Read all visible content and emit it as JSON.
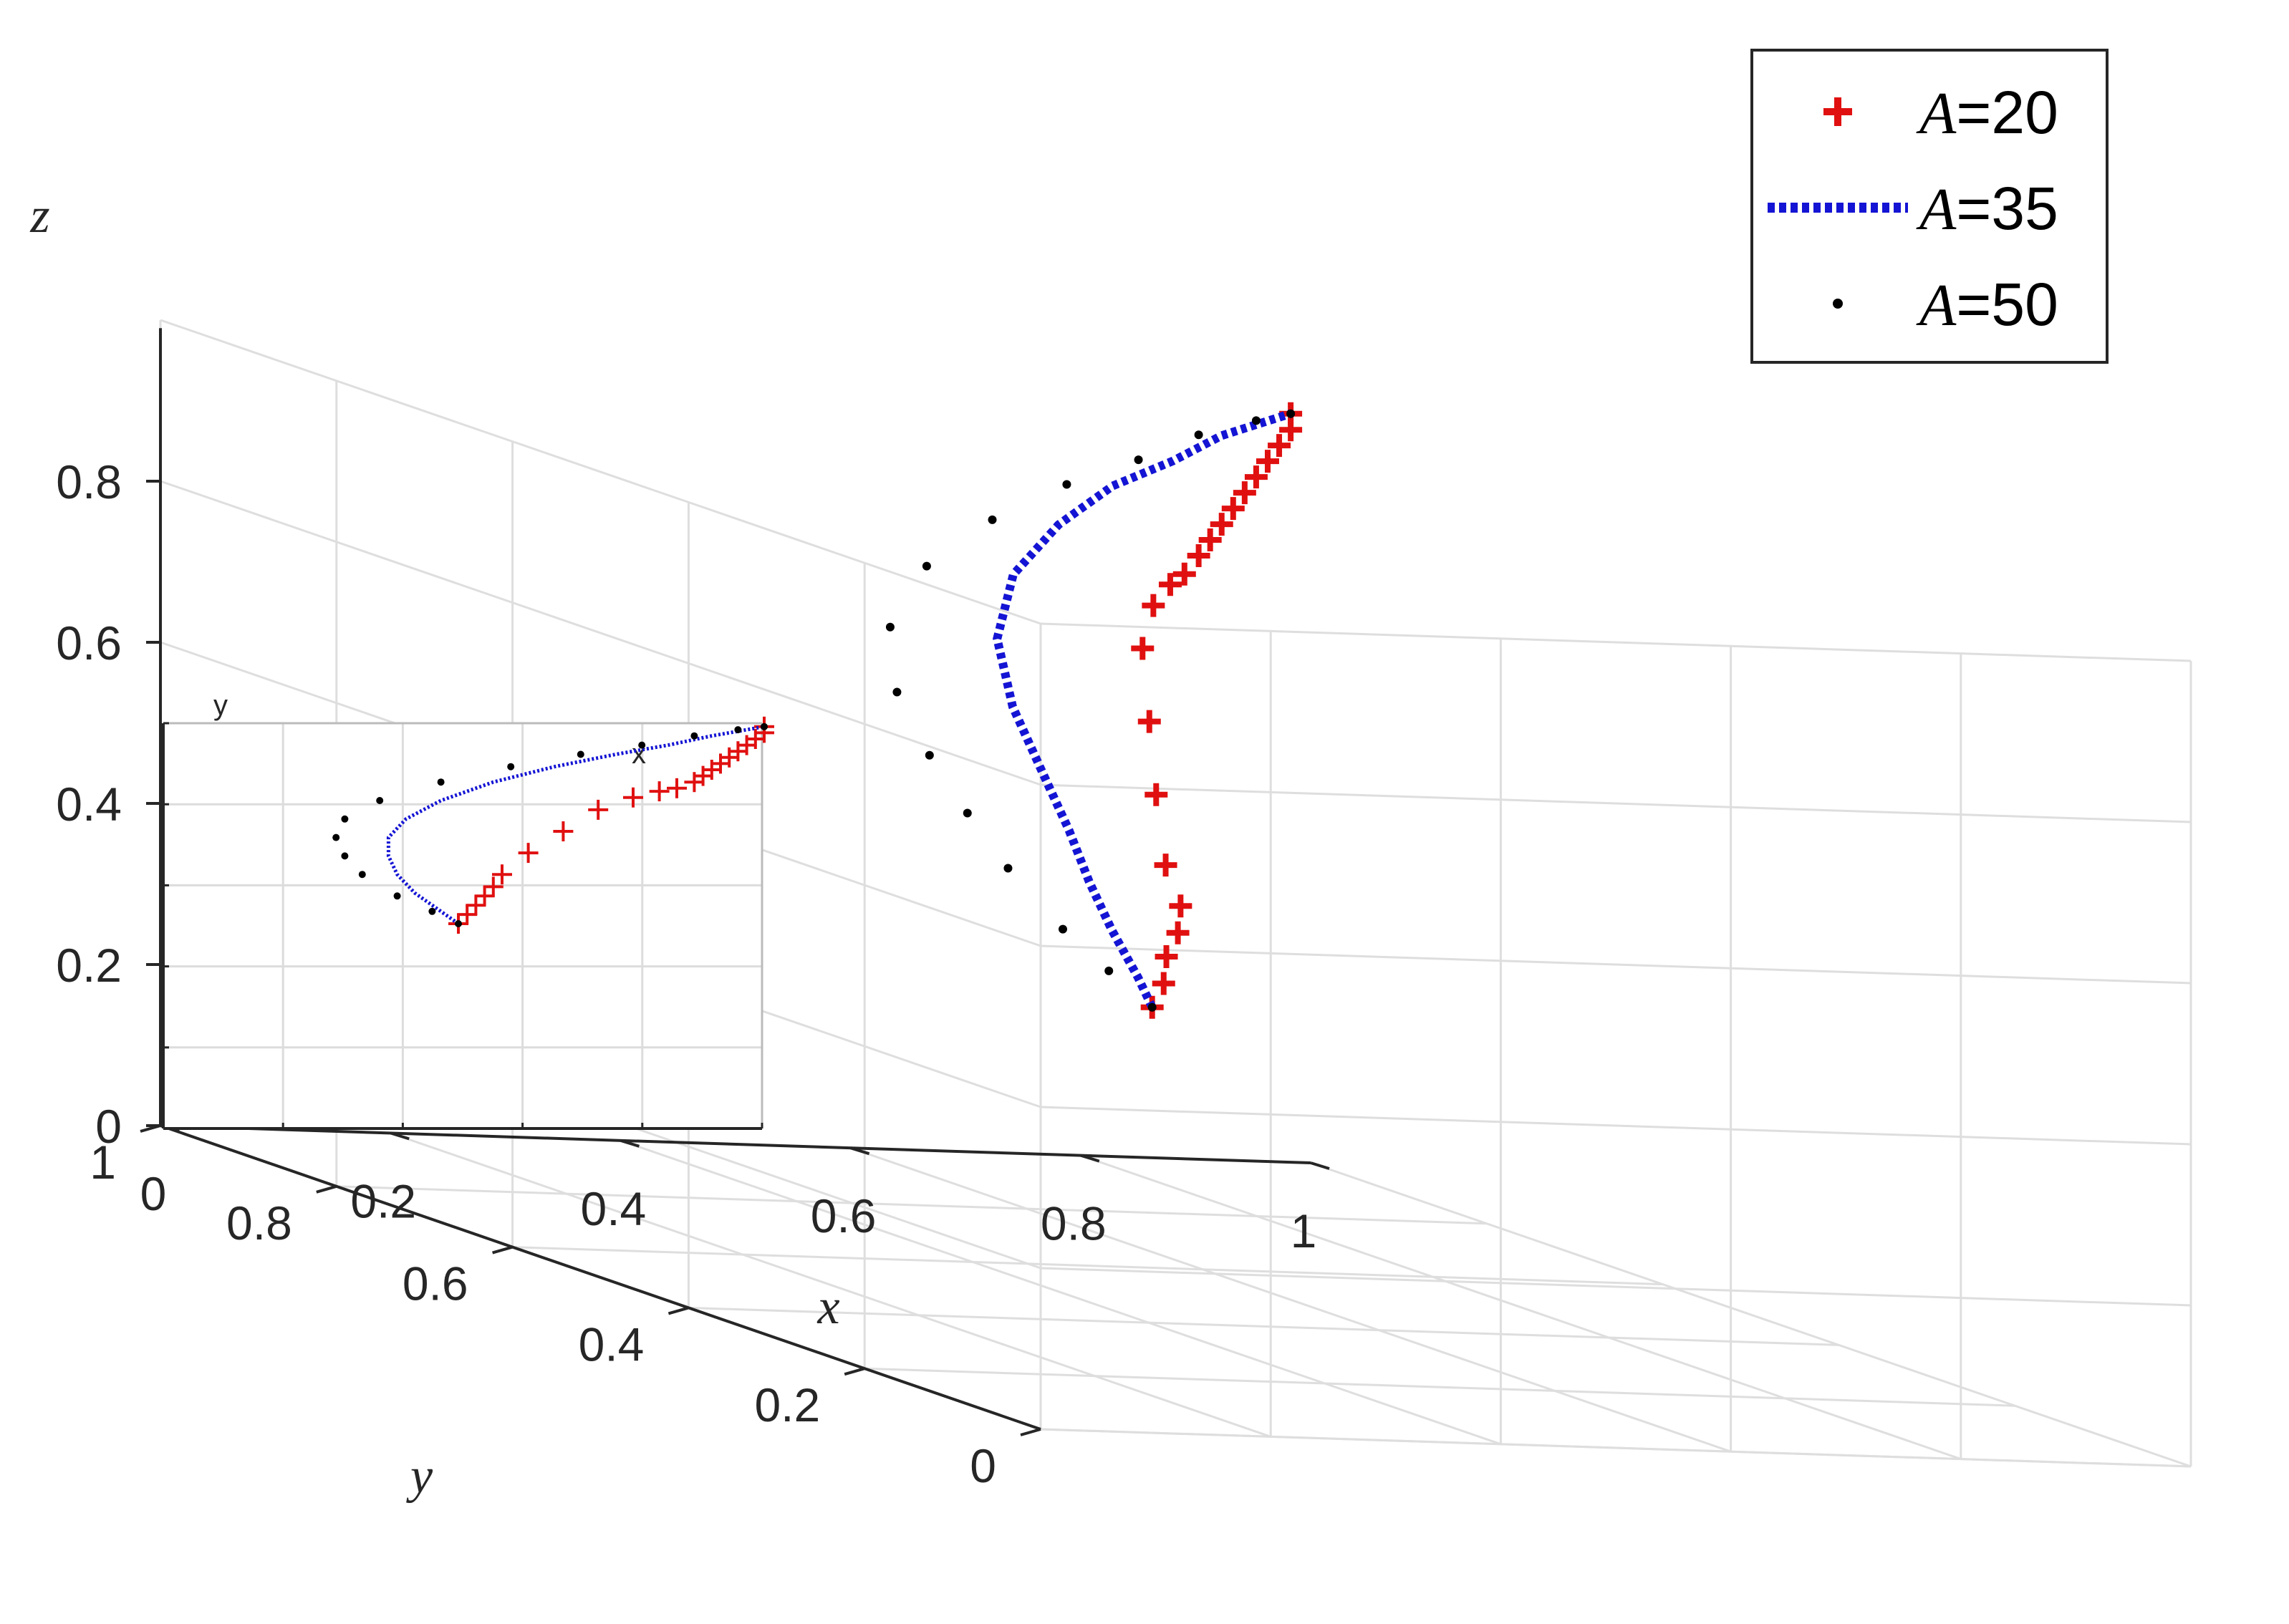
{
  "chart_data": {
    "type": "scatter",
    "projection": "3d",
    "axes": {
      "x": {
        "label": "x",
        "lim": [
          0,
          1
        ],
        "ticks": [
          "0",
          "0.2",
          "0.4",
          "0.6",
          "0.8",
          "1"
        ]
      },
      "y": {
        "label": "y",
        "lim": [
          0,
          1
        ],
        "ticks": [
          "0",
          "0.2",
          "0.4",
          "0.6",
          "0.8",
          "1"
        ]
      },
      "z": {
        "label": "z",
        "lim": [
          0,
          1
        ],
        "ticks": [
          "0",
          "0.2",
          "0.4",
          "0.6",
          "0.8"
        ]
      }
    },
    "grid": true,
    "legend": {
      "position": "top-right",
      "variable": "A"
    },
    "series": [
      {
        "name": "A=20",
        "variable": "A",
        "value": "20",
        "marker": "+",
        "color": "#e01010",
        "points": [
          [
            0.25,
            0.2,
            0.46
          ],
          [
            0.26,
            0.2,
            0.49
          ],
          [
            0.27,
            0.21,
            0.52
          ],
          [
            0.28,
            0.21,
            0.55
          ],
          [
            0.29,
            0.22,
            0.58
          ],
          [
            0.3,
            0.25,
            0.62
          ],
          [
            0.33,
            0.3,
            0.69
          ],
          [
            0.37,
            0.36,
            0.76
          ],
          [
            0.41,
            0.42,
            0.83
          ],
          [
            0.45,
            0.46,
            0.87
          ],
          [
            0.48,
            0.48,
            0.89
          ],
          [
            0.5,
            0.49,
            0.9
          ],
          [
            0.52,
            0.5,
            0.92
          ],
          [
            0.53,
            0.5,
            0.94
          ],
          [
            0.54,
            0.5,
            0.96
          ],
          [
            0.55,
            0.5,
            0.98
          ],
          [
            0.56,
            0.5,
            1.0
          ],
          [
            0.57,
            0.5,
            1.02
          ],
          [
            0.58,
            0.5,
            1.04
          ],
          [
            0.59,
            0.5,
            1.06
          ],
          [
            0.6,
            0.5,
            1.08
          ],
          [
            0.6,
            0.5,
            1.1
          ]
        ]
      },
      {
        "name": "A=35",
        "variable": "A",
        "value": "35",
        "marker": "line",
        "linestyle": "dotted",
        "color": "#1414d4",
        "points": [
          [
            0.25,
            0.2,
            0.46
          ],
          [
            0.23,
            0.19,
            0.5
          ],
          [
            0.2,
            0.18,
            0.56
          ],
          [
            0.18,
            0.18,
            0.62
          ],
          [
            0.17,
            0.19,
            0.68
          ],
          [
            0.17,
            0.22,
            0.74
          ],
          [
            0.19,
            0.28,
            0.8
          ],
          [
            0.23,
            0.35,
            0.86
          ],
          [
            0.29,
            0.41,
            0.92
          ],
          [
            0.36,
            0.45,
            0.97
          ],
          [
            0.43,
            0.48,
            1.01
          ],
          [
            0.49,
            0.49,
            1.04
          ],
          [
            0.54,
            0.5,
            1.07
          ],
          [
            0.58,
            0.5,
            1.09
          ],
          [
            0.6,
            0.5,
            1.1
          ]
        ]
      },
      {
        "name": "A=50",
        "variable": "A",
        "value": "50",
        "marker": ".",
        "color": "#000000",
        "points": [
          [
            0.25,
            0.2,
            0.46
          ],
          [
            0.22,
            0.21,
            0.5
          ],
          [
            0.18,
            0.21,
            0.55
          ],
          [
            0.14,
            0.22,
            0.62
          ],
          [
            0.12,
            0.24,
            0.68
          ],
          [
            0.11,
            0.27,
            0.74
          ],
          [
            0.12,
            0.32,
            0.8
          ],
          [
            0.16,
            0.38,
            0.86
          ],
          [
            0.23,
            0.43,
            0.92
          ],
          [
            0.31,
            0.46,
            0.97
          ],
          [
            0.39,
            0.48,
            1.01
          ],
          [
            0.46,
            0.49,
            1.04
          ],
          [
            0.52,
            0.5,
            1.07
          ],
          [
            0.57,
            0.5,
            1.09
          ],
          [
            0.6,
            0.5,
            1.1
          ]
        ]
      }
    ],
    "inset": {
      "description": "top view (x–y projection)",
      "xlabel": "x",
      "ylabel": "y",
      "xlim": [
        0,
        1
      ],
      "ylim": [
        0,
        1
      ]
    }
  }
}
